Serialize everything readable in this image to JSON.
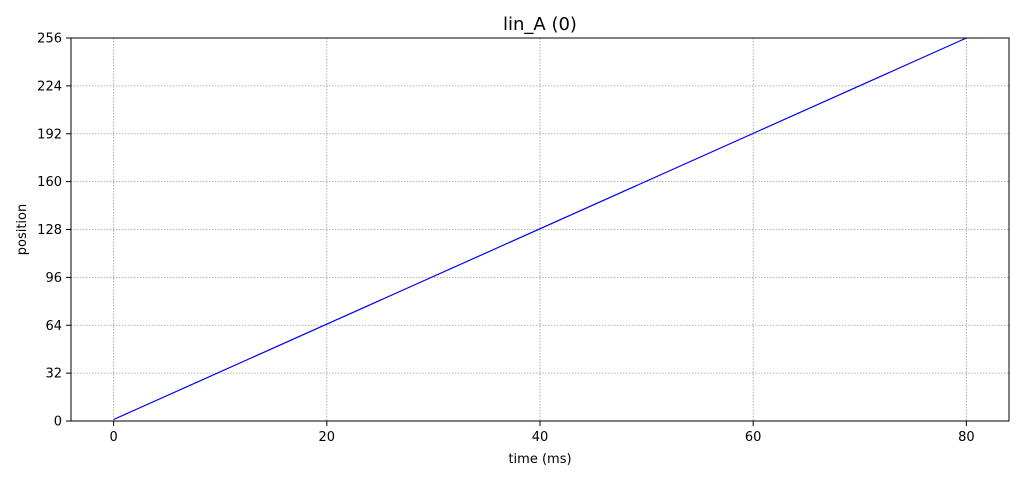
{
  "chart_data": {
    "type": "line",
    "title": "lin_A (0)",
    "xlabel": "time (ms)",
    "ylabel": "position",
    "xlim": [
      -4,
      84
    ],
    "ylim": [
      0,
      256
    ],
    "xticks": [
      0,
      20,
      40,
      60,
      80
    ],
    "yticks": [
      0,
      32,
      64,
      96,
      128,
      160,
      192,
      224,
      256
    ],
    "grid": true,
    "series": [
      {
        "name": "lin_A",
        "color": "#0000ff",
        "x": [
          0,
          80
        ],
        "y": [
          1,
          256
        ]
      }
    ]
  }
}
